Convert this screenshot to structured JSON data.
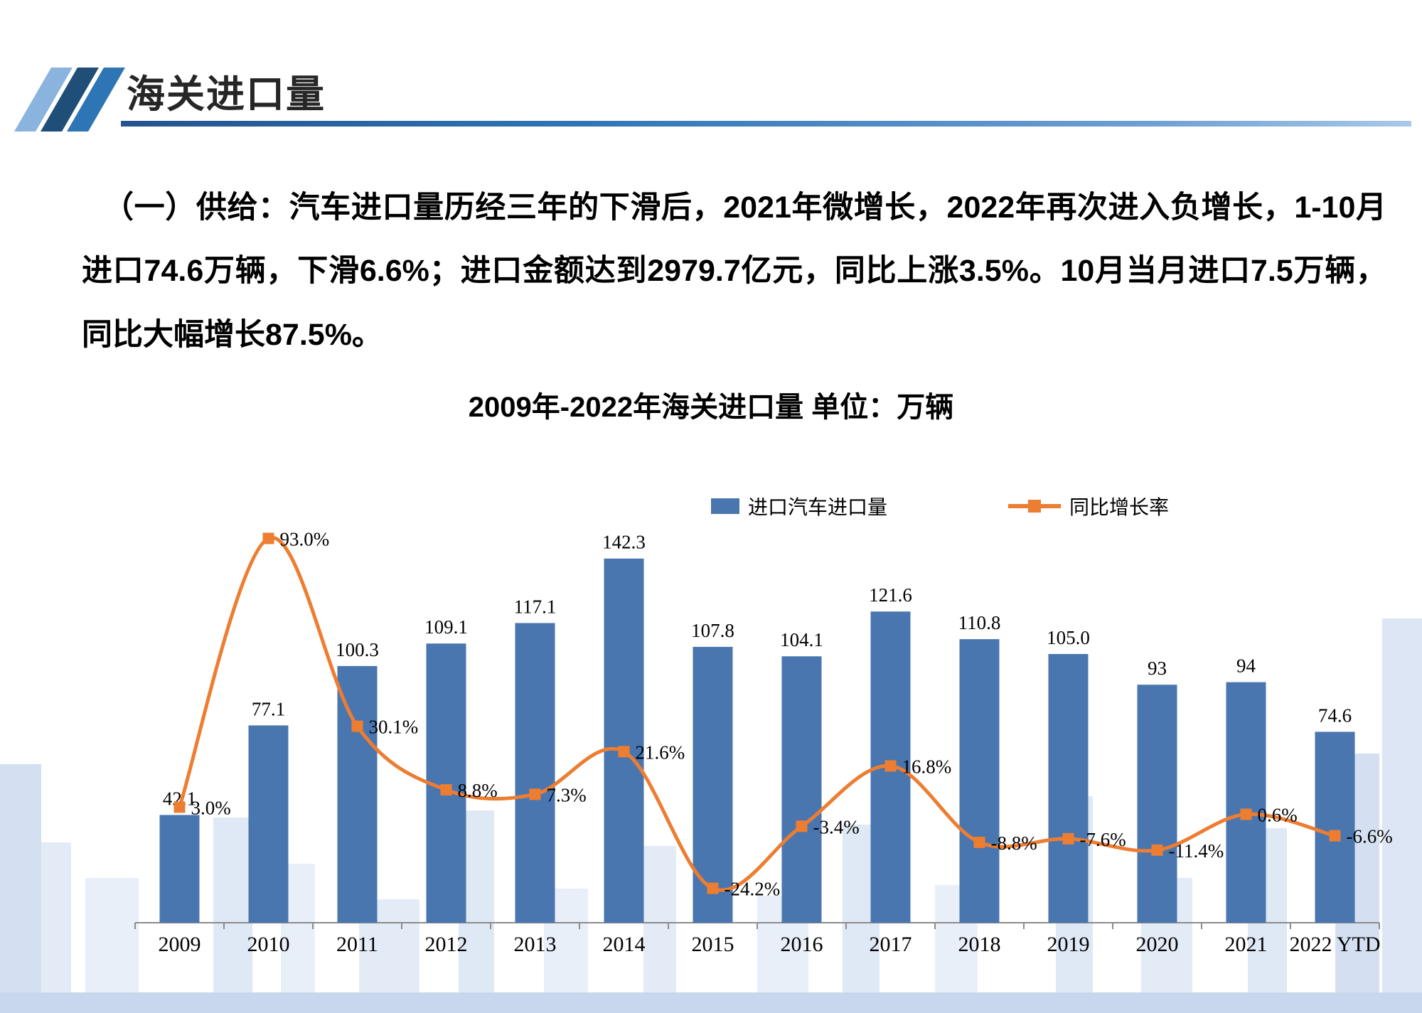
{
  "header": {
    "title": "海关进口量"
  },
  "intro": {
    "text": "（一）供给：汽车进口量历经三年的下滑后，2021年微增长，2022年再次进入负增长，1-10月进口74.6万辆，下滑6.6%；进口金额达到2979.7亿元，同比上涨3.5%。10月当月进口7.5万辆，同比大幅增长87.5%。"
  },
  "chart_data": {
    "type": "bar",
    "title": "2009年-2022年海关进口量  单位：万辆",
    "categories": [
      "2009",
      "2010",
      "2011",
      "2012",
      "2013",
      "2014",
      "2015",
      "2016",
      "2017",
      "2018",
      "2019",
      "2020",
      "2021",
      "2022 YTD"
    ],
    "series": [
      {
        "name": "进口汽车进口量",
        "type": "bar",
        "color": "#4a76b0",
        "values": [
          42.1,
          77.1,
          100.3,
          109.1,
          117.1,
          142.3,
          107.8,
          104.1,
          121.6,
          110.8,
          105.0,
          93,
          94,
          74.6
        ],
        "labels": [
          "42.1",
          "77.1",
          "100.3",
          "109.1",
          "117.1",
          "142.3",
          "107.8",
          "104.1",
          "121.6",
          "110.8",
          "105.0",
          "93",
          "94",
          "74.6"
        ]
      },
      {
        "name": "同比增长率",
        "type": "line",
        "color": "#ed7d31",
        "values": [
          3.0,
          93.0,
          30.1,
          8.8,
          7.3,
          21.6,
          -24.2,
          -3.4,
          16.8,
          -8.8,
          -7.6,
          -11.4,
          0.6,
          -6.6
        ],
        "labels": [
          "3.0%",
          "93.0%",
          "30.1%",
          "8.8%",
          "7.3%",
          "21.6%",
          "-24.2%",
          "-3.4%",
          "16.8%",
          "-8.8%",
          "-7.6%",
          "-11.4%",
          "0.6%",
          "-6.6%"
        ]
      }
    ],
    "legend_position": "top-center",
    "grid": false,
    "bar_axis_max_hint": 160,
    "line_axis_range_hint": [
      -40,
      100
    ]
  },
  "colors": {
    "bar": "#4a76b0",
    "line": "#ed7d31",
    "accent_dark": "#1f4e79",
    "accent": "#2e75b6",
    "accent_light": "#8ab4dd",
    "skyline": "#dce6f4",
    "axis": "#8c8c8c"
  }
}
